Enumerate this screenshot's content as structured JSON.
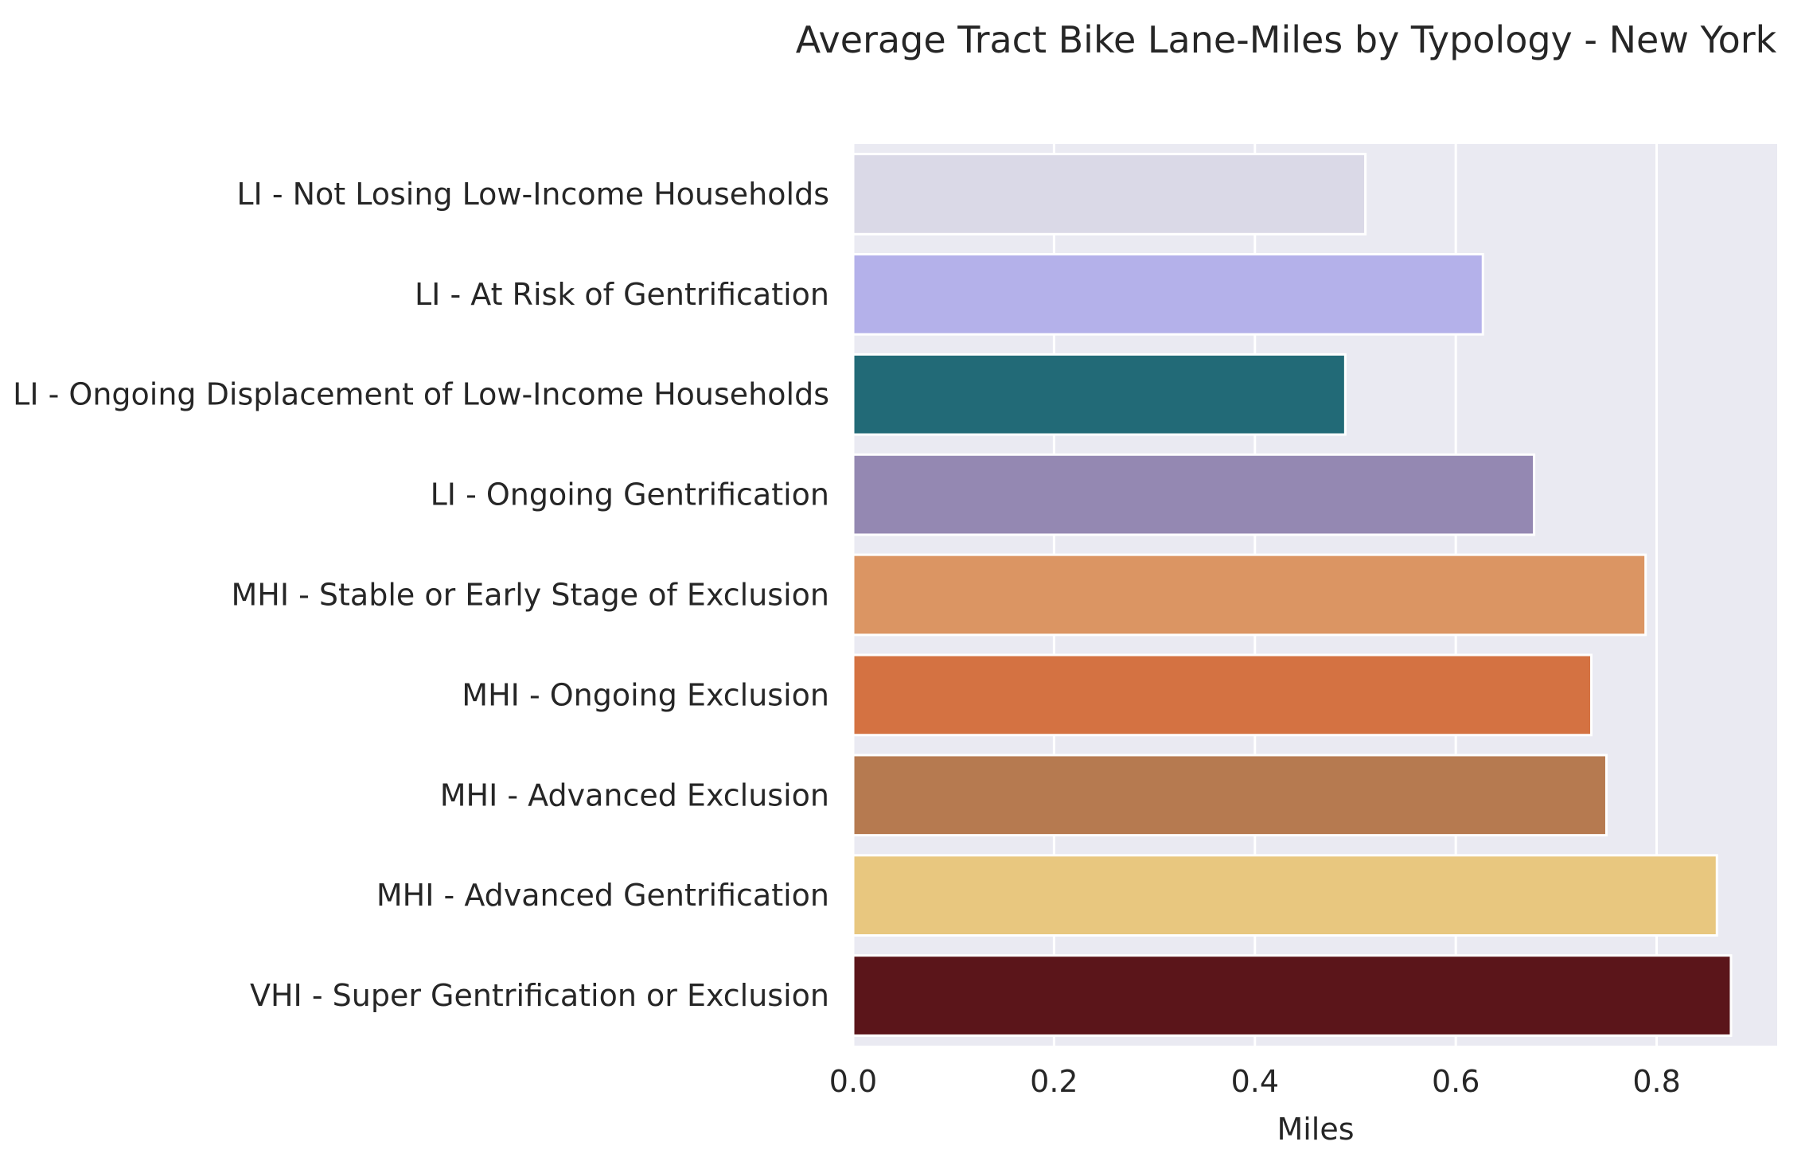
{
  "chart_data": {
    "type": "bar",
    "orientation": "horizontal",
    "title": "Average Tract Bike Lane-Miles by Typology - New York",
    "xlabel": "Miles",
    "ylabel": "",
    "xlim": [
      0,
      0.92
    ],
    "xticks": [
      "0.0",
      "0.2",
      "0.4",
      "0.6",
      "0.8"
    ],
    "xtick_values": [
      0.0,
      0.2,
      0.4,
      0.6,
      0.8
    ],
    "grid": true,
    "categories": [
      "LI - Not Losing Low-Income Households",
      "LI - At Risk of Gentrification",
      "LI - Ongoing Displacement of Low-Income Households",
      "LI - Ongoing Gentrification",
      "MHI - Stable or Early Stage of Exclusion",
      "MHI - Ongoing Exclusion",
      "MHI - Advanced Exclusion",
      "MHI - Advanced Gentrification",
      "VHI - Super Gentrification or Exclusion"
    ],
    "values": [
      0.51,
      0.627,
      0.49,
      0.678,
      0.789,
      0.735,
      0.75,
      0.86,
      0.874
    ],
    "colors": [
      "#dad9e7",
      "#b4b1ea",
      "#226a77",
      "#9488b2",
      "#db9563",
      "#d47242",
      "#b67a50",
      "#e8c77f",
      "#5b151a"
    ],
    "plot_background": "#eaeaf2",
    "grid_color": "#ffffff"
  }
}
